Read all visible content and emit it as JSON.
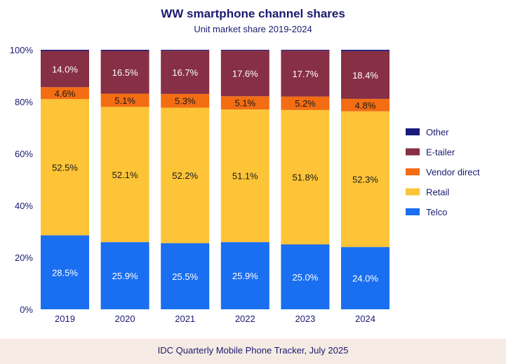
{
  "chart_data": {
    "type": "bar",
    "stacked": true,
    "title": "WW smartphone channel shares",
    "subtitle": "Unit market share 2019-2024",
    "categories": [
      "2019",
      "2020",
      "2021",
      "2022",
      "2023",
      "2024"
    ],
    "y_ticks": [
      "0%",
      "20%",
      "40%",
      "60%",
      "80%",
      "100%"
    ],
    "ylim": [
      0,
      100
    ],
    "grid": false,
    "legend_position": "right",
    "series": [
      {
        "name": "Telco",
        "color": "#1a6ef0",
        "values": [
          28.5,
          25.9,
          25.5,
          25.9,
          25.0,
          24.0
        ],
        "labels": [
          "28.5%",
          "25.9%",
          "25.5%",
          "25.9%",
          "25.0%",
          "24.0%"
        ],
        "label_color": "#ffffff"
      },
      {
        "name": "Retail",
        "color": "#fdc437",
        "values": [
          52.5,
          52.1,
          52.2,
          51.1,
          51.8,
          52.3
        ],
        "labels": [
          "52.5%",
          "52.1%",
          "52.2%",
          "51.1%",
          "51.8%",
          "52.3%"
        ],
        "label_color": "#1a1a1a"
      },
      {
        "name": "Vendor direct",
        "color": "#f36d13",
        "values": [
          4.6,
          5.1,
          5.3,
          5.1,
          5.2,
          4.8
        ],
        "labels": [
          "4.6%",
          "5.1%",
          "5.3%",
          "5.1%",
          "5.2%",
          "4.8%"
        ],
        "label_color": "#1a1a1a"
      },
      {
        "name": "E-tailer",
        "color": "#862f45",
        "values": [
          14.0,
          16.5,
          16.7,
          17.6,
          17.7,
          18.4
        ],
        "labels": [
          "14.0%",
          "16.5%",
          "16.7%",
          "17.6%",
          "17.7%",
          "18.4%"
        ],
        "label_color": "#ffffff"
      },
      {
        "name": "Other",
        "color": "#1a1a7a",
        "values": [
          0.4,
          0.4,
          0.3,
          0.3,
          0.3,
          0.5
        ],
        "labels": [
          "",
          "",
          "",
          "",
          "",
          ""
        ],
        "label_color": "#ffffff"
      }
    ],
    "legend_order": [
      "Other",
      "E-tailer",
      "Vendor direct",
      "Retail",
      "Telco"
    ]
  },
  "footer": {
    "source": "IDC Quarterly Mobile Phone Tracker, July 2025"
  }
}
